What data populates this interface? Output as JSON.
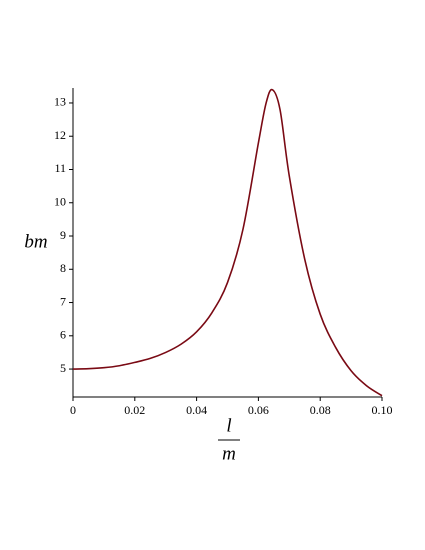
{
  "chart_data": {
    "type": "line",
    "y_label": "bm",
    "x_label": {
      "numerator": "l",
      "denominator": "m"
    },
    "x": [
      0,
      0.005,
      0.01,
      0.015,
      0.02,
      0.025,
      0.03,
      0.035,
      0.04,
      0.045,
      0.05,
      0.055,
      0.06,
      0.0625,
      0.0645,
      0.067,
      0.07,
      0.075,
      0.08,
      0.085,
      0.09,
      0.095,
      0.1
    ],
    "series": [
      {
        "color": "#7a0a14",
        "values": [
          5.0,
          5.01,
          5.04,
          5.1,
          5.2,
          5.32,
          5.5,
          5.75,
          6.12,
          6.7,
          7.6,
          9.2,
          11.8,
          13.0,
          13.4,
          12.8,
          10.8,
          8.3,
          6.65,
          5.65,
          4.95,
          4.5,
          4.2
        ]
      }
    ],
    "xlim": [
      0,
      0.1
    ],
    "ylim": [
      4.16,
      13.45
    ],
    "xticks": [
      0,
      0.02,
      0.04,
      0.06,
      0.08,
      {
        "value": 0.1,
        "label": "0.10"
      }
    ],
    "yticks": [
      5,
      6,
      7,
      8,
      9,
      10,
      11,
      12,
      13
    ]
  }
}
